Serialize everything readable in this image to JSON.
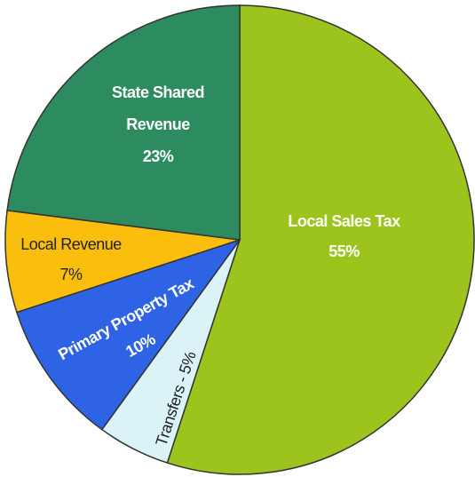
{
  "chart_data": {
    "type": "pie",
    "categories": [
      "Local Sales Tax",
      "Transfers -",
      "Primary Property Tax",
      "Local Revenue",
      "State Shared Revenue"
    ],
    "values": [
      55,
      5,
      10,
      7,
      23
    ],
    "value_labels": [
      "55%",
      "5%",
      "10%",
      "7%",
      "23%"
    ],
    "colors": [
      "#9dc41c",
      "#d9f3f7",
      "#2f63e6",
      "#fbbe0c",
      "#2c8c5f"
    ]
  }
}
